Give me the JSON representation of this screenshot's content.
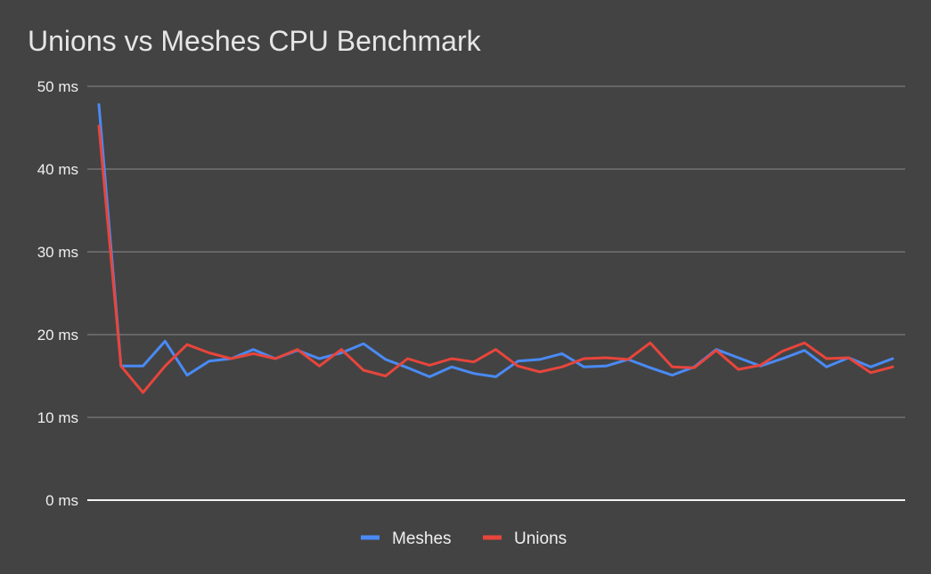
{
  "chart_data": {
    "type": "line",
    "title": "Unions vs Meshes CPU Benchmark",
    "xlabel": "",
    "ylabel": "",
    "ylim": [
      0,
      50
    ],
    "y_ticks": [
      0,
      10,
      20,
      30,
      40,
      50
    ],
    "y_tick_labels": [
      "0 ms",
      "10 ms",
      "20 ms",
      "30 ms",
      "40 ms",
      "50 ms"
    ],
    "grid": true,
    "legend_position": "bottom",
    "x": [
      1,
      2,
      3,
      4,
      5,
      6,
      7,
      8,
      9,
      10,
      11,
      12,
      13,
      14,
      15,
      16,
      17,
      18,
      19,
      20,
      21,
      22,
      23,
      24,
      25,
      26,
      27,
      28,
      29,
      30,
      31,
      32,
      33,
      34,
      35,
      36,
      37
    ],
    "series": [
      {
        "name": "Meshes",
        "color": "#4a8af4",
        "values": [
          47.8,
          16.2,
          16.2,
          19.2,
          15.1,
          16.8,
          17.1,
          18.2,
          17.1,
          18.1,
          17.1,
          17.8,
          18.9,
          17.0,
          16.0,
          14.9,
          16.1,
          15.3,
          14.9,
          16.8,
          17.0,
          17.7,
          16.1,
          16.2,
          17.0,
          16.0,
          15.1,
          16.1,
          18.2,
          17.2,
          16.2,
          17.1,
          18.1,
          16.1,
          17.2,
          16.1,
          17.1
        ]
      },
      {
        "name": "Unions",
        "color": "#e8453c",
        "values": [
          45.2,
          16.2,
          13.0,
          16.2,
          18.8,
          17.8,
          17.1,
          17.7,
          17.1,
          18.2,
          16.2,
          18.2,
          15.7,
          15.0,
          17.1,
          16.3,
          17.1,
          16.7,
          18.2,
          16.2,
          15.5,
          16.1,
          17.1,
          17.2,
          17.0,
          19.0,
          16.1,
          16.0,
          18.1,
          15.8,
          16.3,
          18.0,
          19.0,
          17.1,
          17.2,
          15.4,
          16.1
        ]
      }
    ]
  }
}
